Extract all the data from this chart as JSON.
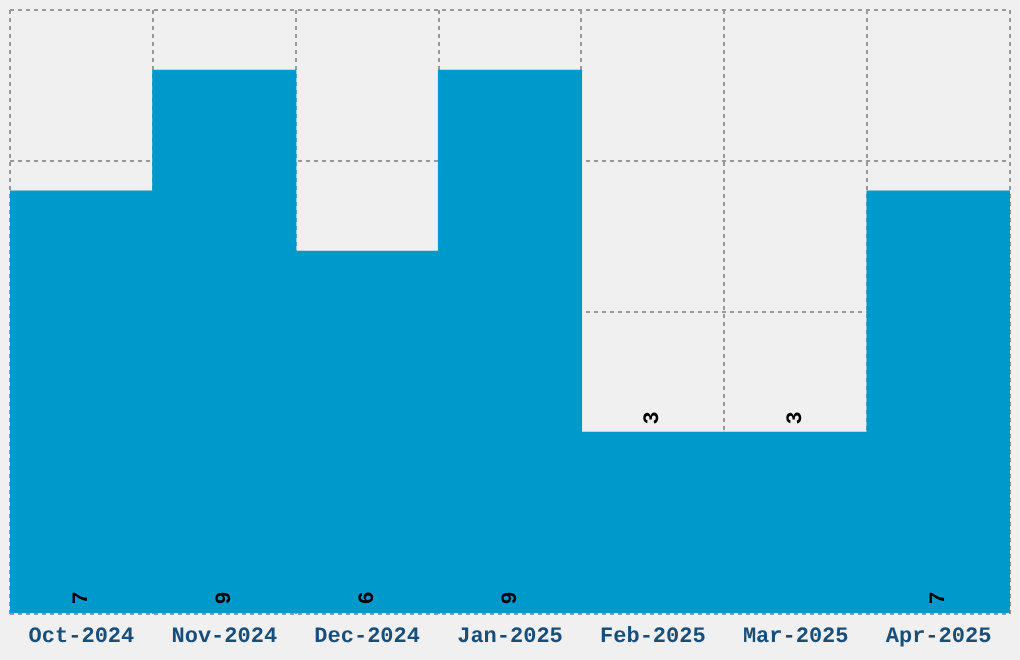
{
  "chart_data": {
    "type": "bar",
    "categories": [
      "Oct-2024",
      "Nov-2024",
      "Dec-2024",
      "Jan-2025",
      "Feb-2025",
      "Mar-2025",
      "Apr-2025"
    ],
    "values": [
      7,
      9,
      6,
      9,
      3,
      3,
      7
    ],
    "color": "#0099cc",
    "ylim": [
      0,
      10
    ],
    "grid": true,
    "tick_labels": "x",
    "data_labels": true
  }
}
